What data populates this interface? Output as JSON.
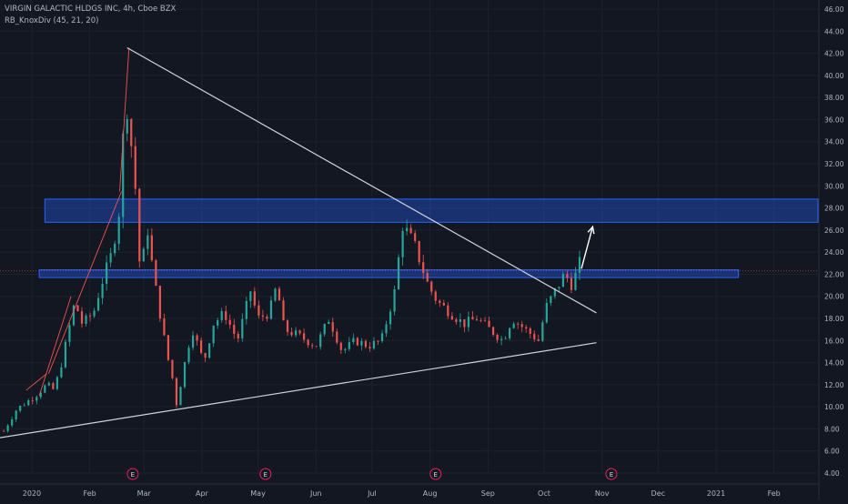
{
  "header": {
    "symbol_line": "VIRGIN GALACTIC HLDGS INC, 4h, Cboe BZX",
    "indicator_line": "RB_KnoxDiv (45, 21, 20)"
  },
  "colors": {
    "background": "#131722",
    "grid": "#1e222d",
    "axis_text": "#b2b5be",
    "up_candle": "#26a69a",
    "down_candle": "#ef5350",
    "trendline": "#d1d4dc",
    "zone_border": "#2962ff",
    "zone_fill": "rgba(41,98,255,0.35)",
    "current_price_line": "#ef5350",
    "divergence_line": "#ef5350",
    "earnings_marker": "#e91e63"
  },
  "chart_data": {
    "type": "candlestick",
    "symbol": "VIRGIN GALACTIC HLDGS INC",
    "interval": "4h",
    "exchange": "Cboe BZX",
    "indicator": "RB_KnoxDiv (45, 21, 20)",
    "x_tick_labels": [
      "2020",
      "Feb",
      "Mar",
      "Apr",
      "May",
      "Jun",
      "Jul",
      "Aug",
      "Sep",
      "Oct",
      "Nov",
      "Dec",
      "2021",
      "Feb"
    ],
    "y_tick_labels": [
      "4.00",
      "6.00",
      "8.00",
      "10.00",
      "12.00",
      "14.00",
      "16.00",
      "18.00",
      "20.00",
      "22.00",
      "24.00",
      "26.00",
      "28.00",
      "30.00",
      "32.00",
      "34.00",
      "36.00",
      "38.00",
      "40.00",
      "42.00",
      "44.00",
      "46.00"
    ],
    "ylim": [
      4,
      46
    ],
    "xlim": [
      "2019-12-15",
      "2021-02-25"
    ],
    "grid": true,
    "price_path": [
      [
        "2019-12-17",
        7.8
      ],
      [
        "2019-12-24",
        9.8
      ],
      [
        "2020-01-03",
        11.0
      ],
      [
        "2020-01-09",
        12.0
      ],
      [
        "2020-01-13",
        11.5
      ],
      [
        "2020-01-17",
        14.0
      ],
      [
        "2020-01-24",
        19.5
      ],
      [
        "2020-01-28",
        17.5
      ],
      [
        "2020-02-03",
        18.5
      ],
      [
        "2020-02-07",
        21.0
      ],
      [
        "2020-02-13",
        24.0
      ],
      [
        "2020-02-17",
        28.0
      ],
      [
        "2020-02-19",
        35.0
      ],
      [
        "2020-02-20",
        40.0
      ],
      [
        "2020-02-21",
        37.0
      ],
      [
        "2020-02-25",
        31.0
      ],
      [
        "2020-02-28",
        22.0
      ],
      [
        "2020-03-03",
        26.0
      ],
      [
        "2020-03-06",
        22.0
      ],
      [
        "2020-03-10",
        18.0
      ],
      [
        "2020-03-13",
        15.0
      ],
      [
        "2020-03-17",
        12.0
      ],
      [
        "2020-03-18",
        10.0
      ],
      [
        "2020-03-20",
        11.5
      ],
      [
        "2020-03-24",
        15.0
      ],
      [
        "2020-03-27",
        17.0
      ],
      [
        "2020-04-02",
        14.0
      ],
      [
        "2020-04-07",
        17.5
      ],
      [
        "2020-04-13",
        18.5
      ],
      [
        "2020-04-20",
        16.0
      ],
      [
        "2020-04-27",
        20.5
      ],
      [
        "2020-05-01",
        18.0
      ],
      [
        "2020-05-07",
        18.5
      ],
      [
        "2020-05-11",
        21.0
      ],
      [
        "2020-05-15",
        17.0
      ],
      [
        "2020-05-22",
        16.5
      ],
      [
        "2020-06-01",
        15.5
      ],
      [
        "2020-06-08",
        18.0
      ],
      [
        "2020-06-15",
        15.0
      ],
      [
        "2020-06-22",
        16.0
      ],
      [
        "2020-06-29",
        15.5
      ],
      [
        "2020-07-06",
        16.0
      ],
      [
        "2020-07-10",
        18.5
      ],
      [
        "2020-07-14",
        21.0
      ],
      [
        "2020-07-16",
        25.0
      ],
      [
        "2020-07-17",
        26.5
      ],
      [
        "2020-07-21",
        25.5
      ],
      [
        "2020-07-24",
        24.5
      ],
      [
        "2020-07-28",
        22.5
      ],
      [
        "2020-07-31",
        21.0
      ],
      [
        "2020-08-05",
        19.5
      ],
      [
        "2020-08-12",
        18.5
      ],
      [
        "2020-08-19",
        17.5
      ],
      [
        "2020-08-26",
        18.0
      ],
      [
        "2020-09-02",
        17.0
      ],
      [
        "2020-09-09",
        16.0
      ],
      [
        "2020-09-14",
        18.0
      ],
      [
        "2020-09-21",
        17.0
      ],
      [
        "2020-09-28",
        16.0
      ],
      [
        "2020-10-02",
        19.0
      ],
      [
        "2020-10-07",
        20.5
      ],
      [
        "2020-10-12",
        22.0
      ],
      [
        "2020-10-16",
        21.0
      ],
      [
        "2020-10-20",
        23.0
      ]
    ],
    "drawings": [
      {
        "type": "trendline",
        "name": "descending-resistance",
        "points": [
          [
            "2020-02-21",
            42.5
          ],
          [
            "2020-10-29",
            18.5
          ]
        ]
      },
      {
        "type": "trendline",
        "name": "ascending-support",
        "points": [
          [
            "2019-12-15",
            7.2
          ],
          [
            "2020-10-29",
            15.8
          ]
        ]
      },
      {
        "type": "zone",
        "name": "upper-resistance-zone",
        "x": [
          "2020-01-08",
          "2021-02-25"
        ],
        "y": [
          26.7,
          28.8
        ]
      },
      {
        "type": "zone",
        "name": "middle-zone",
        "x": [
          "2020-01-05",
          "2021-01-13"
        ],
        "y": [
          21.7,
          22.4
        ]
      },
      {
        "type": "arrow",
        "name": "projection-arrow",
        "points": [
          [
            "2020-10-21",
            22.5
          ],
          [
            "2020-10-27",
            26.3
          ]
        ]
      },
      {
        "type": "hline",
        "name": "current-price-line",
        "y": 22.3
      }
    ],
    "divergence_lines": [
      [
        [
          "2019-12-29",
          11.5
        ],
        [
          "2020-01-09",
          13.0
        ]
      ],
      [
        [
          "2020-01-05",
          11.0
        ],
        [
          "2020-01-22",
          20.0
        ]
      ],
      [
        [
          "2020-01-10",
          13.0
        ],
        [
          "2020-02-18",
          29.5
        ]
      ],
      [
        [
          "2020-02-17",
          29.5
        ],
        [
          "2020-02-22",
          42.5
        ]
      ]
    ],
    "events": [
      {
        "label": "E",
        "date": "2020-02-24"
      },
      {
        "label": "E",
        "date": "2020-05-05"
      },
      {
        "label": "E",
        "date": "2020-08-04"
      },
      {
        "label": "E",
        "date": "2020-11-06"
      }
    ]
  }
}
